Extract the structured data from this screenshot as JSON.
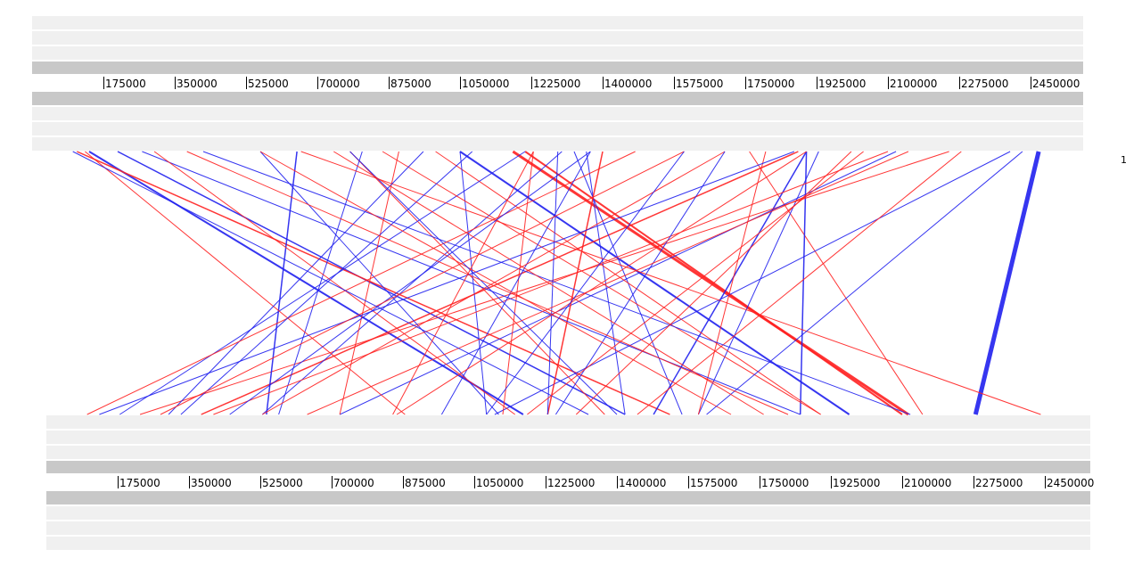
{
  "top_genome": {
    "tick_labels": [
      "175000",
      "350000",
      "525000",
      "700000",
      "875000",
      "1050000",
      "1225000",
      "1400000",
      "1575000",
      "1750000",
      "1925000",
      "2100000",
      "2275000",
      "2450000"
    ]
  },
  "bottom_genome": {
    "tick_labels": [
      "175000",
      "350000",
      "525000",
      "700000",
      "875000",
      "1050000",
      "1225000",
      "1400000",
      "1575000",
      "1750000",
      "1925000",
      "2100000",
      "2275000",
      "2450000"
    ]
  },
  "side_label": "1",
  "colors": {
    "band_light": "#f0f0f0",
    "band_dark": "#c8c8c8",
    "forward_match": "#ff2020",
    "reverse_match": "#2020ee"
  },
  "matches": [
    {
      "s": "reverse",
      "top": 2470000,
      "bottom": 2280000,
      "w": 5
    },
    {
      "s": "forward",
      "top": 1180000,
      "bottom": 2115000,
      "w": 3
    },
    {
      "s": "forward",
      "top": 1210000,
      "bottom": 2100000,
      "w": 2
    },
    {
      "s": "reverse",
      "top": 1050000,
      "bottom": 1970000,
      "w": 2
    },
    {
      "s": "reverse",
      "top": 140000,
      "bottom": 1170000,
      "w": 2
    },
    {
      "s": "reverse",
      "top": 210000,
      "bottom": 1420000,
      "w": 1.5
    },
    {
      "s": "forward",
      "top": 110000,
      "bottom": 1530000,
      "w": 1.5
    },
    {
      "s": "forward",
      "top": 1880000,
      "bottom": 380000,
      "w": 1.5
    },
    {
      "s": "forward",
      "top": 1760000,
      "bottom": 2150000,
      "w": 1
    },
    {
      "s": "reverse",
      "top": 1900000,
      "bottom": 1490000,
      "w": 1.5
    },
    {
      "s": "reverse",
      "top": 1930000,
      "bottom": 1600000,
      "w": 1
    },
    {
      "s": "reverse",
      "top": 1900000,
      "bottom": 1850000,
      "w": 1.5
    },
    {
      "s": "forward",
      "top": 2250000,
      "bottom": 230000,
      "w": 1
    },
    {
      "s": "reverse",
      "top": 2120000,
      "bottom": 720000,
      "w": 1
    },
    {
      "s": "reverse",
      "top": 2400000,
      "bottom": 1100000,
      "w": 1
    },
    {
      "s": "reverse",
      "top": 1360000,
      "bottom": 1420000,
      "w": 1
    },
    {
      "s": "reverse",
      "top": 1330000,
      "bottom": 1560000,
      "w": 1
    },
    {
      "s": "forward",
      "top": 1400000,
      "bottom": 1230000,
      "w": 1.5
    },
    {
      "s": "reverse",
      "top": 1300000,
      "bottom": 530000,
      "w": 1
    },
    {
      "s": "reverse",
      "top": 650000,
      "bottom": 540000,
      "w": 1.5
    },
    {
      "s": "reverse",
      "top": 810000,
      "bottom": 570000,
      "w": 1
    },
    {
      "s": "reverse",
      "top": 560000,
      "bottom": 1110000,
      "w": 1
    },
    {
      "s": "forward",
      "top": 780000,
      "bottom": 1370000,
      "w": 1
    },
    {
      "s": "forward",
      "top": 990000,
      "bottom": 1900000,
      "w": 1
    },
    {
      "s": "forward",
      "top": 1230000,
      "bottom": 1120000,
      "w": 1
    },
    {
      "s": "reverse",
      "top": 1050000,
      "bottom": 1080000,
      "w": 1
    },
    {
      "s": "reverse",
      "top": 1290000,
      "bottom": 1230000,
      "w": 1
    },
    {
      "s": "forward",
      "top": 2280000,
      "bottom": 1450000,
      "w": 1
    },
    {
      "s": "forward",
      "top": 1800000,
      "bottom": 1600000,
      "w": 1
    },
    {
      "s": "forward",
      "top": 2100000,
      "bottom": 410000,
      "w": 1
    },
    {
      "s": "reverse",
      "top": 1210000,
      "bottom": 180000,
      "w": 1
    },
    {
      "s": "forward",
      "top": 860000,
      "bottom": 1900000,
      "w": 1
    },
    {
      "s": "forward",
      "top": 660000,
      "bottom": 2440000,
      "w": 1
    },
    {
      "s": "reverse",
      "top": 270000,
      "bottom": 1850000,
      "w": 1
    },
    {
      "s": "forward",
      "top": 900000,
      "bottom": 720000,
      "w": 1
    },
    {
      "s": "reverse",
      "top": 420000,
      "bottom": 2120000,
      "w": 1
    },
    {
      "s": "forward",
      "top": 130000,
      "bottom": 880000,
      "w": 1
    },
    {
      "s": "reverse",
      "top": 960000,
      "bottom": 300000,
      "w": 1
    },
    {
      "s": "forward",
      "top": 1480000,
      "bottom": 100000,
      "w": 1
    },
    {
      "s": "reverse",
      "top": 1370000,
      "bottom": 970000,
      "w": 1
    },
    {
      "s": "forward",
      "top": 1700000,
      "bottom": 530000,
      "w": 1
    },
    {
      "s": "reverse",
      "top": 1700000,
      "bottom": 1250000,
      "w": 1
    },
    {
      "s": "forward",
      "top": 560000,
      "bottom": 1680000,
      "w": 1
    },
    {
      "s": "reverse",
      "top": 780000,
      "bottom": 1400000,
      "w": 1
    },
    {
      "s": "forward",
      "top": 2010000,
      "bottom": 1300000,
      "w": 1
    },
    {
      "s": "reverse",
      "top": 1080000,
      "bottom": 330000,
      "w": 1
    },
    {
      "s": "forward",
      "top": 300000,
      "bottom": 1150000,
      "w": 1
    },
    {
      "s": "reverse",
      "top": 1870000,
      "bottom": 130000,
      "w": 1
    },
    {
      "s": "forward",
      "top": 2150000,
      "bottom": 640000,
      "w": 1
    },
    {
      "s": "reverse",
      "top": 2430000,
      "bottom": 1620000,
      "w": 1
    },
    {
      "s": "forward",
      "top": 1230000,
      "bottom": 850000,
      "w": 1
    },
    {
      "s": "reverse",
      "top": 1370000,
      "bottom": 450000,
      "w": 1
    },
    {
      "s": "forward",
      "top": 1600000,
      "bottom": 280000,
      "w": 1
    },
    {
      "s": "forward",
      "top": 740000,
      "bottom": 1760000,
      "w": 1
    },
    {
      "s": "reverse",
      "top": 100000,
      "bottom": 1330000,
      "w": 1
    },
    {
      "s": "forward",
      "top": 1900000,
      "bottom": 860000,
      "w": 1
    },
    {
      "s": "forward",
      "top": 2040000,
      "bottom": 1180000,
      "w": 1
    },
    {
      "s": "reverse",
      "top": 1600000,
      "bottom": 1080000,
      "w": 1
    },
    {
      "s": "forward",
      "top": 380000,
      "bottom": 1820000,
      "w": 1
    }
  ]
}
